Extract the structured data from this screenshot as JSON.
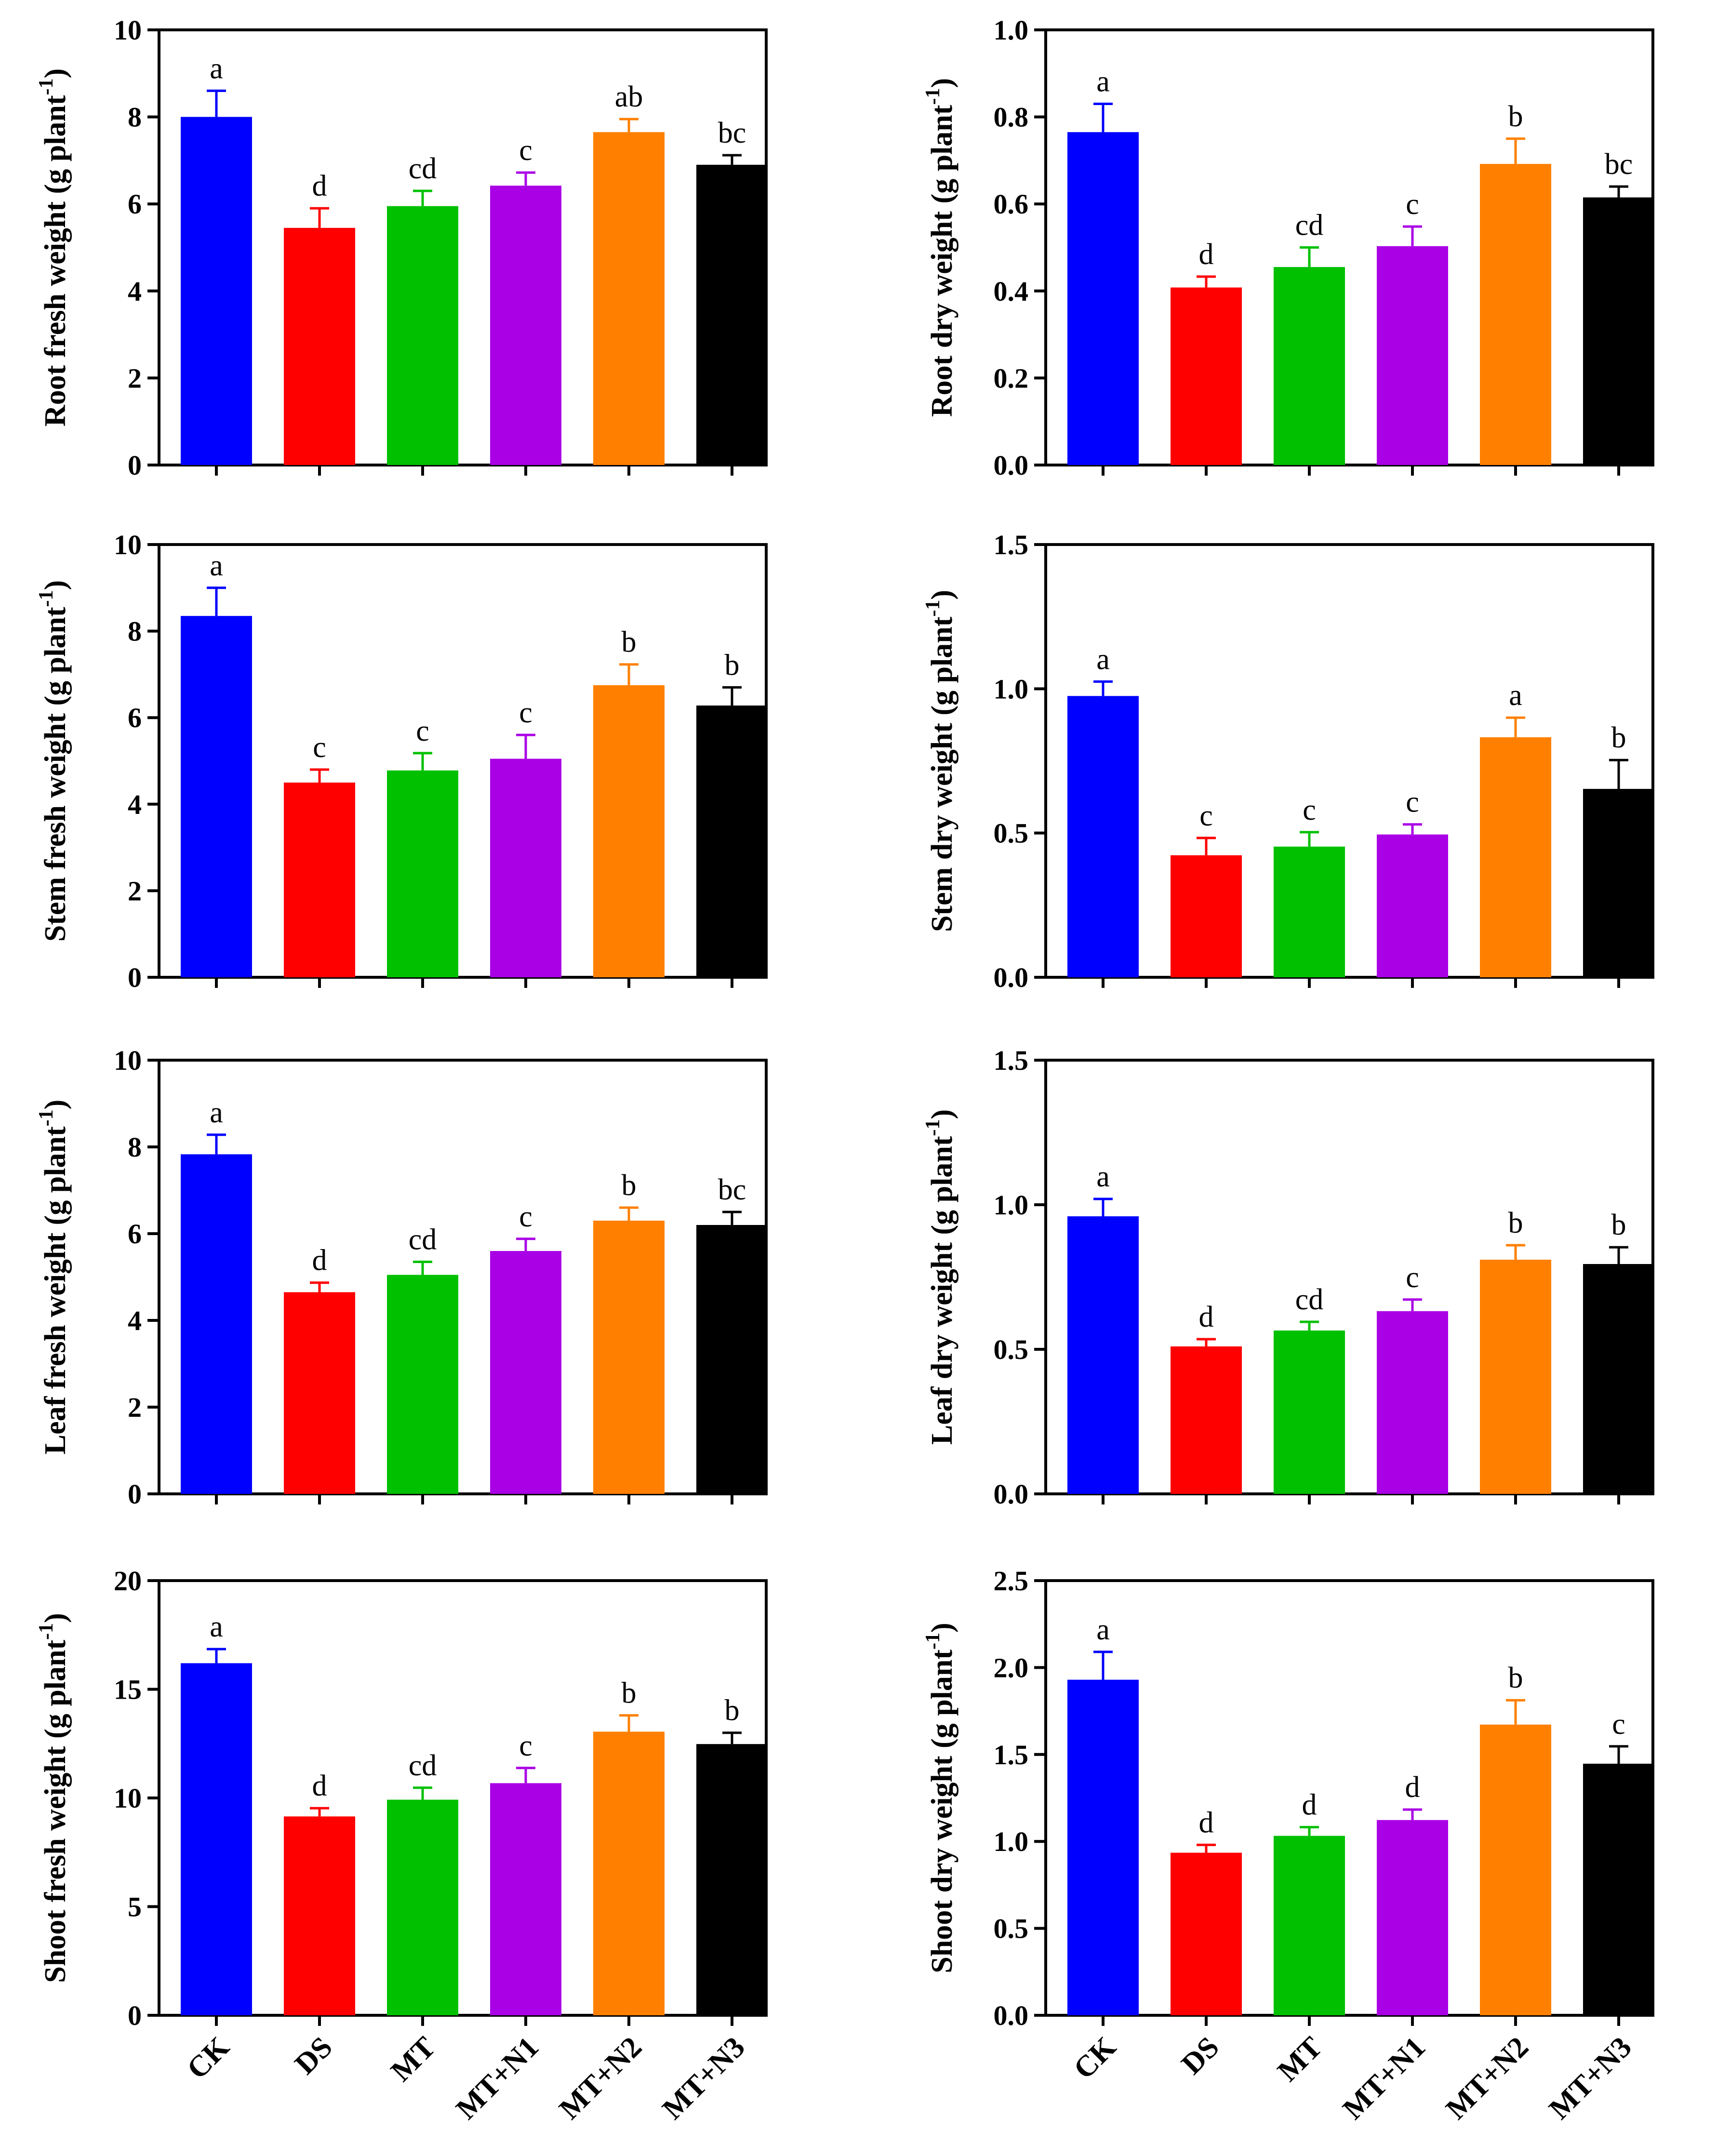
{
  "colors": {
    "CK": "#0000ff",
    "DS": "#ff0000",
    "MT": "#00c000",
    "MT+N1": "#aa00e6",
    "MT+N2": "#ff8000",
    "MT+N3": "#000000"
  },
  "chart_data": [
    {
      "type": "bar",
      "ylabel": "Root fresh weight (g plant",
      "ylabel_sup": "-1",
      "ylabel_close": ")",
      "categories": [
        "CK",
        "DS",
        "MT",
        "MT+N1",
        "MT+N2",
        "MT+N3"
      ],
      "values": [
        8.0,
        5.45,
        5.95,
        6.42,
        7.65,
        6.9
      ],
      "errors": [
        0.6,
        0.45,
        0.35,
        0.3,
        0.3,
        0.22
      ],
      "letters": [
        "a",
        "d",
        "cd",
        "c",
        "ab",
        "bc"
      ],
      "ylim": [
        0,
        10
      ],
      "yticks": [
        0,
        2,
        4,
        6,
        8,
        10
      ],
      "ytick_labels": [
        "0",
        "2",
        "4",
        "6",
        "8",
        "10"
      ]
    },
    {
      "type": "bar",
      "ylabel": "Root dry weight (g plant",
      "ylabel_sup": "-1",
      "ylabel_close": ")",
      "categories": [
        "CK",
        "DS",
        "MT",
        "MT+N1",
        "MT+N2",
        "MT+N3"
      ],
      "values": [
        0.765,
        0.408,
        0.455,
        0.503,
        0.692,
        0.615
      ],
      "errors": [
        0.065,
        0.025,
        0.045,
        0.045,
        0.058,
        0.025
      ],
      "letters": [
        "a",
        "d",
        "cd",
        "c",
        "b",
        "bc"
      ],
      "ylim": [
        0,
        1
      ],
      "yticks": [
        0,
        0.2,
        0.4,
        0.6,
        0.8,
        1.0
      ],
      "ytick_labels": [
        "0.0",
        "0.2",
        "0.4",
        "0.6",
        "0.8",
        "1.0"
      ]
    },
    {
      "type": "bar",
      "ylabel": "Stem fresh weight (g plant",
      "ylabel_sup": "-1",
      "ylabel_close": ")",
      "categories": [
        "CK",
        "DS",
        "MT",
        "MT+N1",
        "MT+N2",
        "MT+N3"
      ],
      "values": [
        8.35,
        4.5,
        4.78,
        5.05,
        6.75,
        6.28
      ],
      "errors": [
        0.65,
        0.3,
        0.4,
        0.55,
        0.48,
        0.42
      ],
      "letters": [
        "a",
        "c",
        "c",
        "c",
        "b",
        "b"
      ],
      "ylim": [
        0,
        10
      ],
      "yticks": [
        0,
        2,
        4,
        6,
        8,
        10
      ],
      "ytick_labels": [
        "0",
        "2",
        "4",
        "6",
        "8",
        "10"
      ]
    },
    {
      "type": "bar",
      "ylabel": "Stem dry weight (g plant",
      "ylabel_sup": "-1",
      "ylabel_close": ")",
      "categories": [
        "CK",
        "DS",
        "MT",
        "MT+N1",
        "MT+N2",
        "MT+N3"
      ],
      "values": [
        0.975,
        0.423,
        0.453,
        0.495,
        0.832,
        0.653
      ],
      "errors": [
        0.05,
        0.06,
        0.05,
        0.035,
        0.068,
        0.1
      ],
      "letters": [
        "a",
        "c",
        "c",
        "c",
        "a",
        "b"
      ],
      "ylim": [
        0,
        1.5
      ],
      "yticks": [
        0,
        0.5,
        1.0,
        1.5
      ],
      "ytick_labels": [
        "0.0",
        "0.5",
        "1.0",
        "1.5"
      ]
    },
    {
      "type": "bar",
      "ylabel": "Leaf fresh weight (g plant",
      "ylabel_sup": "-1",
      "ylabel_close": ")",
      "categories": [
        "CK",
        "DS",
        "MT",
        "MT+N1",
        "MT+N2",
        "MT+N3"
      ],
      "values": [
        7.83,
        4.65,
        5.05,
        5.6,
        6.3,
        6.2
      ],
      "errors": [
        0.45,
        0.22,
        0.3,
        0.28,
        0.3,
        0.3
      ],
      "letters": [
        "a",
        "d",
        "cd",
        "c",
        "b",
        "bc"
      ],
      "ylim": [
        0,
        10
      ],
      "yticks": [
        0,
        2,
        4,
        6,
        8,
        10
      ],
      "ytick_labels": [
        "0",
        "2",
        "4",
        "6",
        "8",
        "10"
      ]
    },
    {
      "type": "bar",
      "ylabel": "Leaf dry weight (g plant",
      "ylabel_sup": "-1",
      "ylabel_close": ")",
      "categories": [
        "CK",
        "DS",
        "MT",
        "MT+N1",
        "MT+N2",
        "MT+N3"
      ],
      "values": [
        0.96,
        0.51,
        0.565,
        0.632,
        0.81,
        0.795
      ],
      "errors": [
        0.06,
        0.025,
        0.03,
        0.04,
        0.05,
        0.058
      ],
      "letters": [
        "a",
        "d",
        "cd",
        "c",
        "b",
        "b"
      ],
      "ylim": [
        0,
        1.5
      ],
      "yticks": [
        0,
        0.5,
        1.0,
        1.5
      ],
      "ytick_labels": [
        "0.0",
        "0.5",
        "1.0",
        "1.5"
      ]
    },
    {
      "type": "bar",
      "ylabel": "Shoot fresh weight (g plant",
      "ylabel_sup": "-1",
      "ylabel_close": ")",
      "categories": [
        "CK",
        "DS",
        "MT",
        "MT+N1",
        "MT+N2",
        "MT+N3"
      ],
      "values": [
        16.2,
        9.15,
        9.92,
        10.68,
        13.05,
        12.48
      ],
      "errors": [
        0.65,
        0.38,
        0.55,
        0.7,
        0.75,
        0.52
      ],
      "letters": [
        "a",
        "d",
        "cd",
        "c",
        "b",
        "b"
      ],
      "ylim": [
        0,
        20
      ],
      "yticks": [
        0,
        5,
        10,
        15,
        20
      ],
      "ytick_labels": [
        "0",
        "5",
        "10",
        "15",
        "20"
      ]
    },
    {
      "type": "bar",
      "ylabel": "Shoot dry weight (g plant",
      "ylabel_sup": "-1",
      "ylabel_close": ")",
      "categories": [
        "CK",
        "DS",
        "MT",
        "MT+N1",
        "MT+N2",
        "MT+N3"
      ],
      "values": [
        1.93,
        0.935,
        1.032,
        1.123,
        1.672,
        1.447
      ],
      "errors": [
        0.16,
        0.045,
        0.05,
        0.06,
        0.14,
        0.1
      ],
      "letters": [
        "a",
        "d",
        "d",
        "d",
        "b",
        "c"
      ],
      "ylim": [
        0,
        2.5
      ],
      "yticks": [
        0,
        0.5,
        1.0,
        1.5,
        2.0,
        2.5
      ],
      "ytick_labels": [
        "0.0",
        "0.5",
        "1.0",
        "1.5",
        "2.0",
        "2.5"
      ]
    }
  ]
}
